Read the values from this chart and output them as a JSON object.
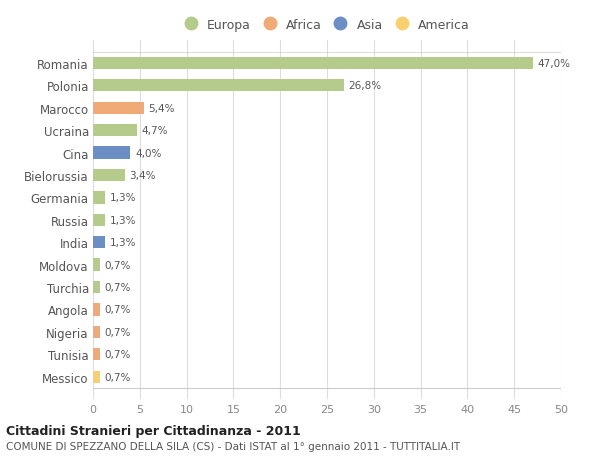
{
  "categories": [
    "Messico",
    "Tunisia",
    "Nigeria",
    "Angola",
    "Turchia",
    "Moldova",
    "India",
    "Russia",
    "Germania",
    "Bielorussia",
    "Cina",
    "Ucraina",
    "Marocco",
    "Polonia",
    "Romania"
  ],
  "values": [
    0.7,
    0.7,
    0.7,
    0.7,
    0.7,
    0.7,
    1.3,
    1.3,
    1.3,
    3.4,
    4.0,
    4.7,
    5.4,
    26.8,
    47.0
  ],
  "labels": [
    "0,7%",
    "0,7%",
    "0,7%",
    "0,7%",
    "0,7%",
    "0,7%",
    "1,3%",
    "1,3%",
    "1,3%",
    "3,4%",
    "4,0%",
    "4,7%",
    "5,4%",
    "26,8%",
    "47,0%"
  ],
  "bar_color_map": {
    "Romania": "#b5cb8b",
    "Polonia": "#b5cb8b",
    "Marocco": "#f0aa78",
    "Ucraina": "#b5cb8b",
    "Cina": "#6b8ec4",
    "Bielorussia": "#b5cb8b",
    "Germania": "#b5cb8b",
    "Russia": "#b5cb8b",
    "India": "#6b8ec4",
    "Moldova": "#b5cb8b",
    "Turchia": "#b5cb8b",
    "Angola": "#f0aa78",
    "Nigeria": "#f0aa78",
    "Tunisia": "#f0aa78",
    "Messico": "#f8d070"
  },
  "continent_colors": {
    "Europa": "#b5cb8b",
    "Africa": "#f0aa78",
    "Asia": "#6b8ec4",
    "America": "#f8d070"
  },
  "title1": "Cittadini Stranieri per Cittadinanza - 2011",
  "title2": "COMUNE DI SPEZZANO DELLA SILA (CS) - Dati ISTAT al 1° gennaio 2011 - TUTTITALIA.IT",
  "xlim": [
    0,
    50
  ],
  "xticks": [
    0,
    5,
    10,
    15,
    20,
    25,
    30,
    35,
    40,
    45,
    50
  ],
  "bg_color": "#ffffff",
  "grid_color": "#dddddd",
  "bar_height": 0.55
}
